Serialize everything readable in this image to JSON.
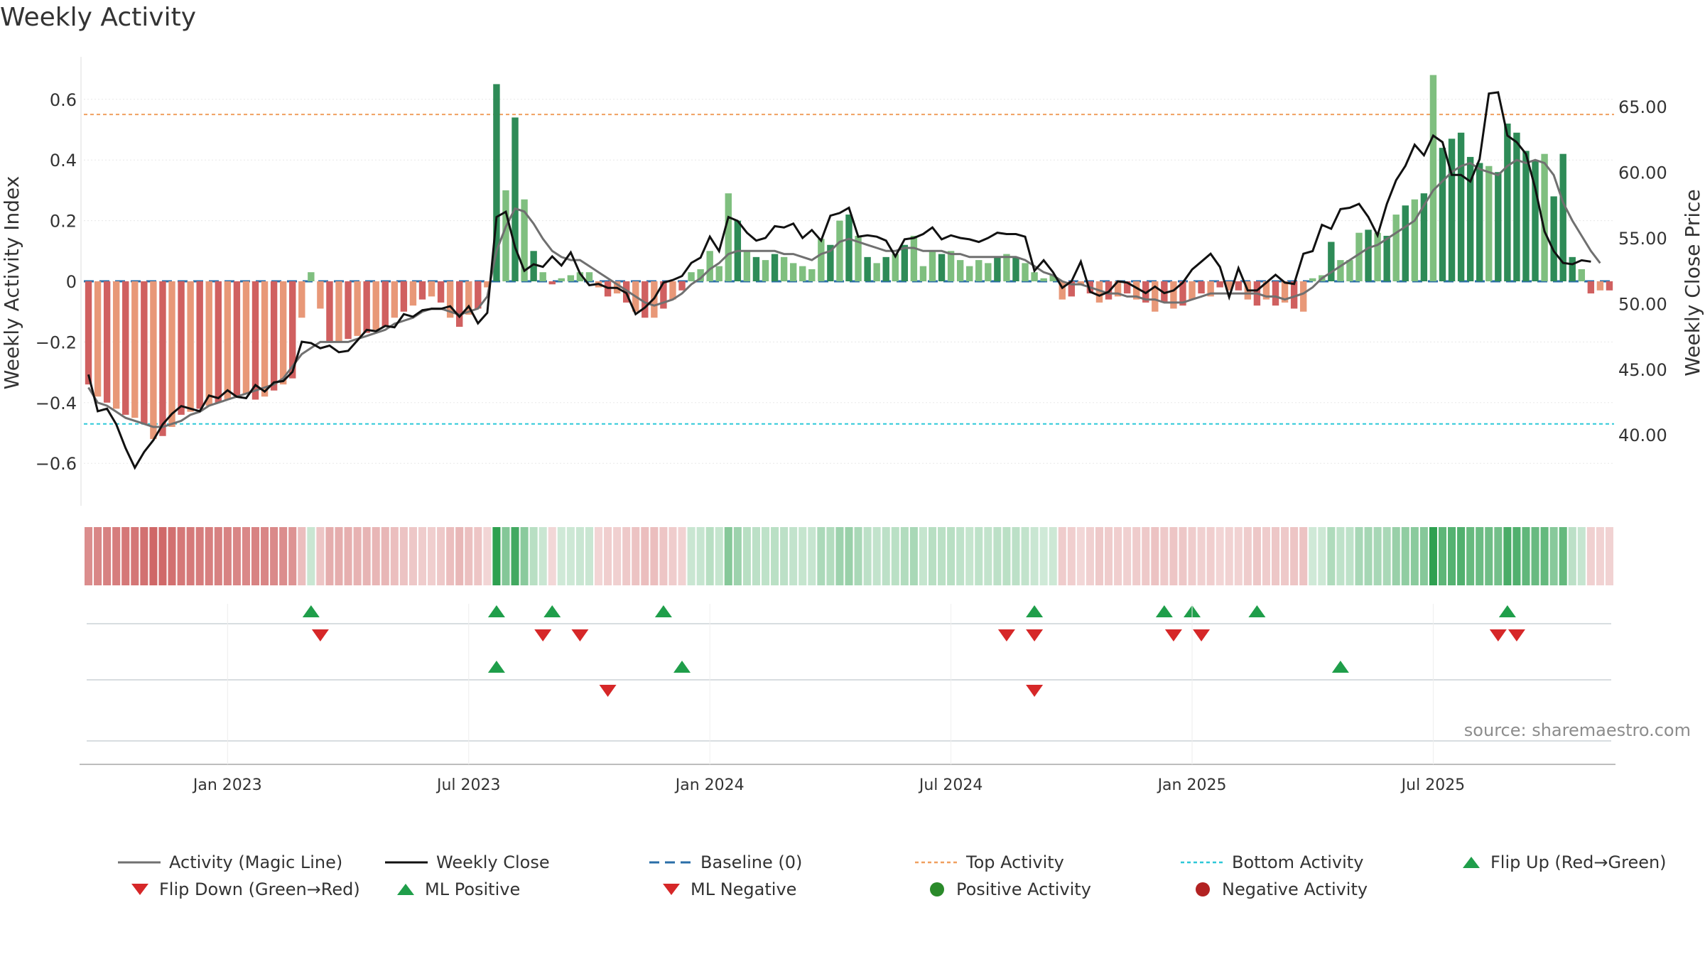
{
  "title": "Weekly Activity",
  "source": "source: sharemaestro.com",
  "colors": {
    "pos_dark": "#2e8b57",
    "pos_light": "#7fbf7f",
    "neg_dark": "#d06060",
    "neg_light": "#e89878",
    "magic_line": "#707070",
    "close_line": "#111111",
    "baseline": "#2a6ea8",
    "top_line": "#f0a060",
    "bottom_line": "#2ec8d8",
    "up_marker": "#1f9e4a",
    "down_marker": "#d62728"
  },
  "chart_data": {
    "type": "bar+line",
    "title": "Weekly Activity",
    "ylabel_left": "Weekly Activity Index",
    "ylabel_right": "Weekly Close Price",
    "left_ticks": [
      0.6,
      0.4,
      0.2,
      0,
      -0.2,
      -0.4,
      -0.6
    ],
    "left_tick_labels": [
      "0.6",
      "0.4",
      "0.2",
      "0",
      "−0.2",
      "−0.4",
      "−0.6"
    ],
    "right_ticks": [
      65,
      60,
      55,
      50,
      45,
      40
    ],
    "right_tick_labels": [
      "65.00",
      "60.00",
      "55.00",
      "50.00",
      "45.00",
      "40.00"
    ],
    "x_tick_labels": [
      "Jan 2023",
      "Jul 2023",
      "Jan 2024",
      "Jul 2024",
      "Jan 2025",
      "Jul 2025"
    ],
    "x_tick_weeks": [
      15,
      41,
      67,
      93,
      119,
      145
    ],
    "ylim_left": [
      -0.74,
      0.74
    ],
    "ylim_right": [
      34.6,
      68.8
    ],
    "top_activity": 0.55,
    "bottom_activity": -0.47,
    "weeks": 157,
    "series": [
      {
        "name": "Weekly Activity Index",
        "values": [
          -0.34,
          -0.38,
          -0.4,
          -0.42,
          -0.44,
          -0.45,
          -0.47,
          -0.52,
          -0.51,
          -0.48,
          -0.44,
          -0.43,
          -0.42,
          -0.41,
          -0.4,
          -0.39,
          -0.38,
          -0.37,
          -0.39,
          -0.38,
          -0.36,
          -0.34,
          -0.32,
          -0.12,
          0.03,
          -0.09,
          -0.2,
          -0.2,
          -0.19,
          -0.18,
          -0.17,
          -0.16,
          -0.15,
          -0.12,
          -0.1,
          -0.08,
          -0.06,
          -0.05,
          -0.07,
          -0.12,
          -0.15,
          -0.11,
          -0.09,
          -0.02,
          0.65,
          0.3,
          0.54,
          0.27,
          0.1,
          0.03,
          -0.01,
          0.01,
          0.02,
          0.03,
          0.03,
          -0.02,
          -0.05,
          -0.04,
          -0.07,
          -0.1,
          -0.12,
          -0.12,
          -0.09,
          -0.06,
          -0.03,
          0.03,
          0.04,
          0.1,
          0.05,
          0.29,
          0.2,
          0.1,
          0.08,
          0.07,
          0.09,
          0.08,
          0.06,
          0.05,
          0.04,
          0.14,
          0.12,
          0.2,
          0.22,
          0.15,
          0.08,
          0.06,
          0.08,
          0.09,
          0.12,
          0.15,
          0.05,
          0.1,
          0.09,
          0.1,
          0.07,
          0.05,
          0.07,
          0.06,
          0.08,
          0.09,
          0.08,
          0.06,
          0.03,
          0.01,
          0.02,
          -0.06,
          -0.05,
          -0.01,
          -0.04,
          -0.07,
          -0.06,
          -0.05,
          -0.04,
          -0.06,
          -0.07,
          -0.1,
          -0.07,
          -0.09,
          -0.08,
          -0.06,
          -0.04,
          -0.05,
          -0.02,
          -0.03,
          -0.03,
          -0.06,
          -0.08,
          -0.06,
          -0.08,
          -0.07,
          -0.09,
          -0.1,
          0.01,
          0.02,
          0.13,
          0.07,
          0.07,
          0.16,
          0.17,
          0.16,
          0.15,
          0.22,
          0.25,
          0.27,
          0.29,
          0.68,
          0.44,
          0.47,
          0.49,
          0.41,
          0.39,
          0.38,
          0.36,
          0.52,
          0.49,
          0.43,
          0.4,
          0.42,
          0.28,
          0.42,
          0.08,
          0.04,
          -0.04,
          -0.03,
          -0.03
        ]
      },
      {
        "name": "Activity (Magic Line)",
        "values": [
          -0.35,
          -0.4,
          -0.41,
          -0.43,
          -0.45,
          -0.46,
          -0.47,
          -0.48,
          -0.48,
          -0.47,
          -0.46,
          -0.44,
          -0.43,
          -0.41,
          -0.4,
          -0.39,
          -0.38,
          -0.37,
          -0.36,
          -0.35,
          -0.34,
          -0.32,
          -0.28,
          -0.24,
          -0.22,
          -0.2,
          -0.2,
          -0.2,
          -0.2,
          -0.19,
          -0.18,
          -0.17,
          -0.16,
          -0.14,
          -0.13,
          -0.12,
          -0.1,
          -0.09,
          -0.09,
          -0.1,
          -0.11,
          -0.1,
          -0.09,
          -0.05,
          0.1,
          0.18,
          0.24,
          0.23,
          0.19,
          0.14,
          0.1,
          0.08,
          0.07,
          0.07,
          0.05,
          0.03,
          0.01,
          -0.01,
          -0.03,
          -0.05,
          -0.07,
          -0.08,
          -0.07,
          -0.06,
          -0.04,
          -0.01,
          0.01,
          0.04,
          0.06,
          0.09,
          0.1,
          0.1,
          0.1,
          0.1,
          0.1,
          0.09,
          0.09,
          0.08,
          0.07,
          0.09,
          0.1,
          0.13,
          0.14,
          0.13,
          0.12,
          0.11,
          0.1,
          0.1,
          0.11,
          0.11,
          0.1,
          0.1,
          0.1,
          0.09,
          0.09,
          0.08,
          0.08,
          0.08,
          0.08,
          0.08,
          0.08,
          0.07,
          0.05,
          0.03,
          0.02,
          0.0,
          -0.01,
          -0.01,
          -0.02,
          -0.03,
          -0.04,
          -0.04,
          -0.05,
          -0.05,
          -0.06,
          -0.06,
          -0.07,
          -0.07,
          -0.07,
          -0.06,
          -0.05,
          -0.04,
          -0.04,
          -0.04,
          -0.04,
          -0.04,
          -0.04,
          -0.05,
          -0.05,
          -0.06,
          -0.05,
          -0.04,
          -0.02,
          0.01,
          0.03,
          0.05,
          0.07,
          0.09,
          0.11,
          0.12,
          0.14,
          0.16,
          0.18,
          0.2,
          0.25,
          0.3,
          0.33,
          0.36,
          0.38,
          0.39,
          0.37,
          0.36,
          0.35,
          0.38,
          0.4,
          0.39,
          0.4,
          0.39,
          0.35,
          0.26,
          0.2,
          0.15,
          0.1,
          0.06
        ]
      },
      {
        "name": "Weekly Close",
        "values": [
          44.6,
          41.8,
          42.0,
          40.8,
          39.0,
          37.5,
          38.7,
          39.6,
          40.8,
          41.6,
          42.2,
          42.0,
          41.8,
          43.0,
          42.8,
          43.4,
          42.9,
          42.8,
          43.8,
          43.3,
          44.0,
          44.1,
          44.8,
          47.1,
          47.0,
          46.6,
          46.8,
          46.3,
          46.4,
          47.2,
          48.0,
          47.9,
          48.3,
          48.2,
          49.2,
          49.0,
          49.5,
          49.6,
          49.6,
          49.8,
          49.0,
          49.8,
          48.5,
          49.3,
          56.6,
          57.0,
          54.3,
          52.5,
          53.0,
          52.8,
          53.6,
          52.9,
          53.9,
          52.3,
          51.4,
          51.5,
          51.2,
          51.2,
          50.8,
          49.2,
          49.7,
          50.4,
          51.6,
          51.8,
          52.1,
          53.1,
          53.5,
          55.1,
          54.0,
          56.6,
          56.3,
          55.4,
          54.8,
          55.0,
          55.9,
          55.8,
          56.1,
          55.0,
          55.6,
          54.8,
          56.7,
          56.9,
          57.3,
          55.1,
          55.2,
          55.1,
          54.8,
          53.6,
          54.9,
          55.0,
          55.3,
          55.8,
          54.9,
          55.2,
          55.0,
          54.9,
          54.7,
          55.0,
          55.4,
          55.3,
          55.3,
          55.1,
          52.5,
          53.3,
          52.4,
          51.2,
          51.7,
          53.2,
          50.9,
          50.6,
          50.9,
          51.7,
          51.6,
          51.2,
          50.8,
          51.3,
          50.8,
          51.0,
          51.6,
          52.6,
          53.2,
          53.8,
          52.8,
          50.5,
          52.7,
          51.0,
          51.0,
          51.6,
          52.2,
          51.6,
          51.5,
          53.8,
          54.0,
          56.0,
          55.7,
          57.2,
          57.3,
          57.6,
          56.6,
          55.2,
          57.6,
          59.4,
          60.5,
          62.1,
          61.3,
          62.8,
          62.3,
          59.8,
          59.8,
          59.3,
          61.0,
          66.0,
          66.1,
          62.8,
          62.3,
          61.4,
          58.8,
          55.5,
          54.0,
          53.1,
          53.0,
          53.3,
          53.2
        ]
      }
    ],
    "strip_label": "activity heat strip",
    "signals": {
      "row1_flip_up_weeks": [
        24,
        44,
        50,
        62,
        102,
        116,
        119,
        126,
        153
      ],
      "row1_flip_down_weeks": [
        25,
        49,
        53,
        99,
        102,
        117,
        120,
        152,
        154
      ],
      "row2_ml_positive_weeks": [
        44,
        64,
        135
      ],
      "row2_ml_negative_weeks": [
        56,
        102
      ]
    }
  },
  "legend": [
    {
      "icon": "magic-line-swatch",
      "label": "Activity (Magic Line)"
    },
    {
      "icon": "weekly-close-swatch",
      "label": "Weekly Close"
    },
    {
      "icon": "baseline-swatch",
      "label": "Baseline (0)"
    },
    {
      "icon": "top-activity-swatch",
      "label": "Top Activity"
    },
    {
      "icon": "bottom-activity-swatch",
      "label": "Bottom Activity"
    },
    {
      "icon": "flip-up-icon",
      "label": "Flip Up (Red→Green)"
    },
    {
      "icon": "flip-down-icon",
      "label": "Flip Down (Green→Red)"
    },
    {
      "icon": "ml-positive-icon",
      "label": "ML Positive"
    },
    {
      "icon": "ml-negative-icon",
      "label": "ML Negative"
    },
    {
      "icon": "positive-activity-dot-icon",
      "label": "Positive Activity"
    },
    {
      "icon": "negative-activity-dot-icon",
      "label": "Negative Activity"
    }
  ]
}
